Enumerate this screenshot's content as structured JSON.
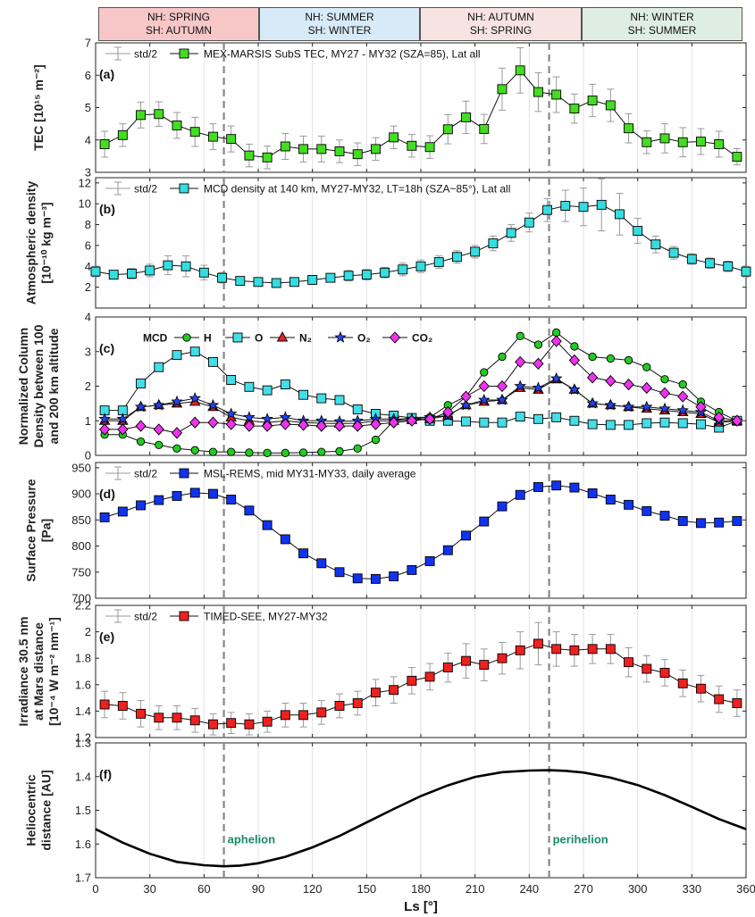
{
  "seasons": [
    {
      "nh": "NH: SPRING",
      "sh": "SH: AUTUMN",
      "color": "#f7c7c7"
    },
    {
      "nh": "NH: SUMMER",
      "sh": "SH: WINTER",
      "color": "#d8eaf8"
    },
    {
      "nh": "NH: AUTUMN",
      "sh": "SH: SPRING",
      "color": "#f8e3e3"
    },
    {
      "nh": "NH: WINTER",
      "sh": "SH: SUMMER",
      "color": "#deeee3"
    }
  ],
  "xaxis": {
    "label": "Ls [°]",
    "ticks": [
      0,
      30,
      60,
      90,
      120,
      150,
      180,
      210,
      240,
      270,
      300,
      330,
      360
    ],
    "lim": [
      0,
      360
    ],
    "vlines": [
      71,
      251
    ]
  },
  "chart_data": [
    {
      "id": "a",
      "type": "line",
      "panel_label": "(a)",
      "ylabel_lines": [
        "TEC [10¹⁵ m⁻²]"
      ],
      "ylim": [
        3,
        7
      ],
      "yticks": [
        3,
        4,
        5,
        6,
        7
      ],
      "legend_std": "std/2",
      "series": [
        {
          "name": "MEX-MARSIS SubS TEC, MY27 - MY32 (SZA=85), Lat all",
          "color": "#44dd22",
          "marker": "square",
          "x": [
            5,
            15,
            25,
            35,
            45,
            55,
            65,
            75,
            85,
            95,
            105,
            115,
            125,
            135,
            145,
            155,
            165,
            175,
            185,
            195,
            205,
            215,
            225,
            235,
            245,
            255,
            265,
            275,
            285,
            295,
            305,
            315,
            325,
            335,
            345,
            355
          ],
          "y": [
            3.87,
            4.15,
            4.77,
            4.8,
            4.45,
            4.25,
            4.1,
            4.03,
            3.52,
            3.46,
            3.8,
            3.72,
            3.72,
            3.65,
            3.56,
            3.72,
            4.08,
            3.82,
            3.78,
            4.33,
            4.7,
            4.34,
            5.57,
            6.15,
            5.48,
            5.4,
            4.97,
            5.22,
            5.07,
            4.36,
            3.93,
            4.05,
            3.93,
            3.95,
            3.87,
            3.48
          ],
          "err": [
            0.4,
            0.35,
            0.4,
            0.38,
            0.4,
            0.45,
            0.4,
            0.4,
            0.35,
            0.35,
            0.4,
            0.4,
            0.4,
            0.35,
            0.35,
            0.35,
            0.35,
            0.35,
            0.35,
            0.45,
            0.5,
            0.45,
            0.65,
            0.7,
            0.6,
            0.55,
            0.45,
            0.5,
            0.5,
            0.45,
            0.35,
            0.45,
            0.45,
            0.4,
            0.4,
            0.25
          ]
        }
      ]
    },
    {
      "id": "b",
      "type": "line",
      "panel_label": "(b)",
      "ylabel_lines": [
        "Atmospheric density",
        "[10⁻¹⁰ kg m⁻³]"
      ],
      "ylim": [
        0,
        12.5
      ],
      "yticks": [
        2,
        4,
        6,
        8,
        10,
        12
      ],
      "legend_std": "std/2",
      "series": [
        {
          "name": "MCD density at 140 km, MY27-MY32, LT=18h (SZA~85°), Lat all",
          "color": "#33dde0",
          "marker": "square",
          "x": [
            0,
            10,
            20,
            30,
            40,
            50,
            60,
            70,
            80,
            90,
            100,
            110,
            120,
            130,
            140,
            150,
            160,
            170,
            180,
            190,
            200,
            210,
            220,
            230,
            240,
            250,
            260,
            270,
            280,
            290,
            300,
            310,
            320,
            330,
            340,
            350,
            360
          ],
          "y": [
            3.5,
            3.2,
            3.3,
            3.6,
            4.1,
            4.0,
            3.4,
            2.9,
            2.6,
            2.5,
            2.4,
            2.5,
            2.7,
            2.9,
            3.1,
            3.2,
            3.4,
            3.7,
            4.0,
            4.4,
            4.9,
            5.4,
            6.2,
            7.2,
            8.2,
            9.4,
            9.8,
            9.7,
            9.9,
            9.0,
            7.4,
            6.1,
            5.3,
            4.7,
            4.3,
            4.0,
            3.5
          ],
          "err": [
            0.5,
            0.4,
            0.5,
            0.6,
            0.9,
            1.0,
            0.7,
            0.5,
            0.4,
            0.4,
            0.4,
            0.4,
            0.4,
            0.4,
            0.5,
            0.5,
            0.5,
            0.6,
            0.6,
            0.6,
            0.6,
            0.6,
            0.7,
            0.8,
            0.9,
            1.1,
            1.5,
            1.8,
            2.5,
            2.0,
            1.2,
            0.8,
            0.6,
            0.5,
            0.5,
            0.5,
            0.5
          ]
        }
      ]
    },
    {
      "id": "c",
      "type": "line",
      "panel_label": "(c)",
      "ylabel_lines": [
        "Normalized Column",
        "Density between 100",
        "and 200 km altitude"
      ],
      "ylim": [
        0,
        4
      ],
      "yticks": [
        0,
        1,
        2,
        3,
        4
      ],
      "legend_title": "MCD",
      "x": [
        5,
        15,
        25,
        35,
        45,
        55,
        65,
        75,
        85,
        95,
        105,
        115,
        125,
        135,
        145,
        155,
        165,
        175,
        185,
        195,
        205,
        215,
        225,
        235,
        245,
        255,
        265,
        275,
        285,
        295,
        305,
        315,
        325,
        335,
        345,
        355
      ],
      "series": [
        {
          "name": "H",
          "color": "#22cc22",
          "marker": "circle",
          "y": [
            0.6,
            0.6,
            0.4,
            0.3,
            0.2,
            0.15,
            0.1,
            0.1,
            0.08,
            0.07,
            0.07,
            0.08,
            0.1,
            0.12,
            0.2,
            0.45,
            1.0,
            1.1,
            1.1,
            1.45,
            1.7,
            2.4,
            2.85,
            3.45,
            3.2,
            3.55,
            3.15,
            2.85,
            2.8,
            2.75,
            2.55,
            2.2,
            2.05,
            1.55,
            1.25,
            1.0
          ]
        },
        {
          "name": "O",
          "color": "#44dde8",
          "marker": "square",
          "y": [
            1.3,
            1.3,
            2.08,
            2.55,
            2.9,
            3.0,
            2.7,
            2.18,
            1.98,
            1.88,
            2.05,
            1.75,
            1.65,
            1.6,
            1.33,
            1.2,
            1.15,
            1.08,
            1.0,
            1.0,
            0.98,
            0.95,
            0.95,
            1.12,
            1.05,
            1.1,
            1.0,
            0.9,
            0.88,
            0.88,
            0.93,
            0.95,
            0.93,
            0.9,
            0.8,
            1.0
          ]
        },
        {
          "name": "N₂",
          "color": "#e82020",
          "marker": "triangle",
          "y": [
            1.0,
            1.0,
            1.4,
            1.45,
            1.5,
            1.55,
            1.4,
            1.1,
            1.0,
            0.95,
            1.0,
            0.95,
            0.93,
            0.92,
            0.93,
            1.0,
            1.0,
            1.02,
            1.05,
            1.15,
            1.45,
            1.55,
            1.6,
            1.95,
            1.9,
            2.2,
            1.9,
            1.5,
            1.45,
            1.4,
            1.35,
            1.3,
            1.25,
            1.2,
            0.95,
            1.0
          ]
        },
        {
          "name": "O₂",
          "color": "#2244ee",
          "marker": "star",
          "y": [
            1.05,
            1.05,
            1.4,
            1.45,
            1.55,
            1.65,
            1.45,
            1.2,
            1.1,
            1.05,
            1.1,
            1.0,
            1.0,
            0.98,
            1.0,
            1.05,
            1.05,
            1.05,
            1.1,
            1.15,
            1.45,
            1.6,
            1.6,
            2.0,
            1.95,
            2.22,
            1.9,
            1.5,
            1.45,
            1.4,
            1.4,
            1.35,
            1.3,
            1.25,
            1.0,
            1.0
          ]
        },
        {
          "name": "CO₂",
          "color": "#ee33ee",
          "marker": "diamond",
          "y": [
            0.75,
            0.75,
            0.85,
            0.75,
            0.65,
            0.95,
            0.95,
            0.9,
            0.85,
            0.85,
            0.9,
            0.88,
            0.85,
            0.85,
            0.85,
            0.9,
            0.95,
            1.0,
            1.05,
            1.25,
            1.7,
            2.0,
            2.0,
            2.7,
            2.65,
            3.3,
            2.75,
            2.25,
            2.15,
            2.05,
            1.95,
            1.8,
            1.7,
            1.4,
            1.1,
            1.0
          ]
        }
      ]
    },
    {
      "id": "d",
      "type": "line",
      "panel_label": "(d)",
      "ylabel_lines": [
        "Surface Pressure",
        "[Pa]"
      ],
      "ylim": [
        700,
        960
      ],
      "yticks": [
        700,
        750,
        800,
        850,
        900,
        950
      ],
      "legend_std": "std/2",
      "series": [
        {
          "name": "MSL-REMS, mid MY31-MY33, daily average",
          "color": "#1133ee",
          "marker": "square",
          "x": [
            5,
            15,
            25,
            35,
            45,
            55,
            65,
            75,
            85,
            95,
            105,
            115,
            125,
            135,
            145,
            155,
            165,
            175,
            185,
            195,
            205,
            215,
            225,
            235,
            245,
            255,
            265,
            275,
            285,
            295,
            305,
            315,
            325,
            335,
            345,
            355
          ],
          "y": [
            855,
            866,
            878,
            888,
            896,
            902,
            900,
            889,
            868,
            840,
            813,
            786,
            767,
            750,
            738,
            737,
            742,
            754,
            771,
            792,
            820,
            847,
            876,
            898,
            913,
            916,
            912,
            901,
            889,
            879,
            867,
            858,
            848,
            844,
            845,
            848
          ]
        }
      ]
    },
    {
      "id": "e",
      "type": "line",
      "panel_label": "(e)",
      "ylabel_lines": [
        "Irradiance 30.5 nm",
        "at Mars distance",
        "[10⁻⁴ W m⁻² nm⁻¹]"
      ],
      "ylim": [
        1.2,
        2.2
      ],
      "yticks": [
        1.2,
        1.4,
        1.6,
        1.8,
        2.0,
        2.2
      ],
      "ytick_labels": [
        "1.2",
        "1.4",
        "1.6",
        "1.8",
        "2",
        "2.2"
      ],
      "legend_std": "std/2",
      "series": [
        {
          "name": "TIMED-SEE, MY27-MY32",
          "color": "#ee2020",
          "marker": "square",
          "x": [
            5,
            15,
            25,
            35,
            45,
            55,
            65,
            75,
            85,
            95,
            105,
            115,
            125,
            135,
            145,
            155,
            165,
            175,
            185,
            195,
            205,
            215,
            225,
            235,
            245,
            255,
            265,
            275,
            285,
            295,
            305,
            315,
            325,
            335,
            345,
            355
          ],
          "y": [
            1.45,
            1.44,
            1.38,
            1.35,
            1.35,
            1.33,
            1.3,
            1.31,
            1.3,
            1.32,
            1.37,
            1.37,
            1.39,
            1.44,
            1.46,
            1.54,
            1.56,
            1.63,
            1.66,
            1.73,
            1.78,
            1.75,
            1.8,
            1.86,
            1.91,
            1.87,
            1.86,
            1.87,
            1.87,
            1.77,
            1.72,
            1.69,
            1.61,
            1.57,
            1.49,
            1.46
          ],
          "err": [
            0.1,
            0.1,
            0.1,
            0.09,
            0.09,
            0.09,
            0.08,
            0.08,
            0.08,
            0.08,
            0.09,
            0.09,
            0.09,
            0.09,
            0.09,
            0.1,
            0.1,
            0.1,
            0.1,
            0.11,
            0.13,
            0.12,
            0.12,
            0.14,
            0.16,
            0.13,
            0.12,
            0.11,
            0.11,
            0.11,
            0.1,
            0.1,
            0.1,
            0.1,
            0.1,
            0.1
          ]
        }
      ]
    },
    {
      "id": "f",
      "type": "line",
      "panel_label": "(f)",
      "ylabel_lines": [
        "Heliocentric",
        "distance [AU]"
      ],
      "ylim": [
        1.3,
        1.7
      ],
      "yticks": [
        1.3,
        1.4,
        1.5,
        1.6,
        1.7
      ],
      "yreversed": true,
      "annotations": [
        {
          "text": "aphelion",
          "x": 73,
          "y": 1.585
        },
        {
          "text": "perihelion",
          "x": 253,
          "y": 1.585
        }
      ],
      "series": [
        {
          "name": "",
          "color": "#000000",
          "x": [
            0,
            15,
            30,
            45,
            60,
            71,
            80,
            90,
            105,
            120,
            135,
            150,
            165,
            180,
            195,
            210,
            225,
            240,
            251,
            260,
            270,
            285,
            300,
            315,
            330,
            345,
            360
          ],
          "y": [
            1.556,
            1.596,
            1.629,
            1.653,
            1.663,
            1.666,
            1.664,
            1.657,
            1.638,
            1.61,
            1.576,
            1.536,
            1.496,
            1.458,
            1.426,
            1.401,
            1.387,
            1.382,
            1.381,
            1.383,
            1.388,
            1.403,
            1.425,
            1.455,
            1.49,
            1.526,
            1.556
          ]
        }
      ]
    }
  ]
}
